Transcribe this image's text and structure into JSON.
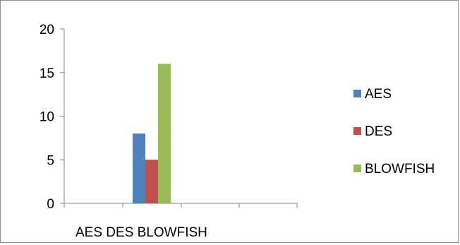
{
  "chart_data": {
    "type": "bar",
    "categories": [
      "AES DES BLOWFISH"
    ],
    "series": [
      {
        "name": "AES",
        "values": [
          8
        ],
        "color": "#4f81bd"
      },
      {
        "name": "DES",
        "values": [
          5
        ],
        "color": "#c0504d"
      },
      {
        "name": "BLOWFISH",
        "values": [
          16
        ],
        "color": "#9bbb59"
      }
    ],
    "title": "",
    "xlabel": "",
    "ylabel": "",
    "ylim": [
      0,
      20
    ],
    "yticks": [
      0,
      5,
      10,
      15,
      20
    ],
    "grid": false,
    "legend_position": "right"
  }
}
